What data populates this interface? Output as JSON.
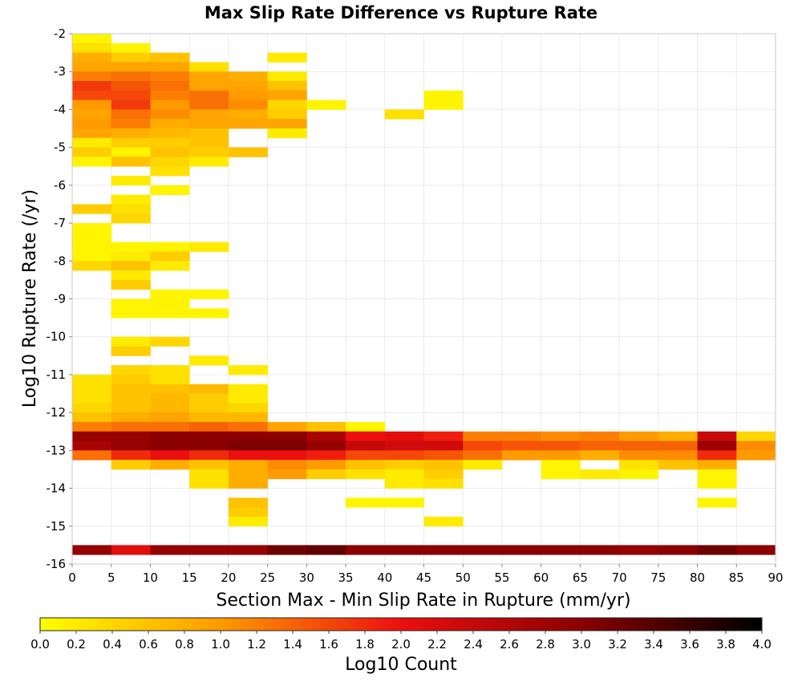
{
  "chart_data": {
    "type": "heatmap",
    "title": "Max Slip Rate Difference vs Rupture Rate",
    "xlabel": "Section Max - Min Slip Rate in Rupture (mm/yr)",
    "ylabel": "Log10 Rupture Rate (/yr)",
    "xlim": [
      0,
      90
    ],
    "ylim": [
      -16,
      -2
    ],
    "x_bin_width": 5,
    "y_bin_height": 0.25,
    "xticks": [
      0,
      5,
      10,
      15,
      20,
      25,
      30,
      35,
      40,
      45,
      50,
      55,
      60,
      65,
      70,
      75,
      80,
      85,
      90
    ],
    "yticks": [
      -2,
      -3,
      -4,
      -5,
      -6,
      -7,
      -8,
      -9,
      -10,
      -11,
      -12,
      -13,
      -14,
      -15,
      -16
    ],
    "grid": true,
    "colorbar": {
      "label": "Log10 Count",
      "min": 0.0,
      "max": 4.0,
      "ticks": [
        "0.0",
        "0.2",
        "0.4",
        "0.6",
        "0.8",
        "1.0",
        "1.2",
        "1.4",
        "1.6",
        "1.8",
        "2.0",
        "2.2",
        "2.4",
        "2.6",
        "2.8",
        "3.0",
        "3.2",
        "3.4",
        "3.6",
        "3.8",
        "4.0"
      ],
      "colormap": [
        [
          0.0,
          "#ffff00"
        ],
        [
          1.0,
          "#ff9a00"
        ],
        [
          2.0,
          "#ec0f0f"
        ],
        [
          3.0,
          "#8b0000"
        ],
        [
          4.0,
          "#000000"
        ]
      ]
    },
    "bins": [
      {
        "x": 0,
        "y": -2.25,
        "v": 0.1
      },
      {
        "x": 0,
        "y": -2.5,
        "v": 0.3
      },
      {
        "x": 0,
        "y": -2.75,
        "v": 0.8
      },
      {
        "x": 0,
        "y": -3.0,
        "v": 0.9
      },
      {
        "x": 0,
        "y": -3.25,
        "v": 1.2
      },
      {
        "x": 0,
        "y": -3.5,
        "v": 1.7
      },
      {
        "x": 0,
        "y": -3.75,
        "v": 1.6
      },
      {
        "x": 0,
        "y": -4.0,
        "v": 1.0
      },
      {
        "x": 0,
        "y": -4.25,
        "v": 0.9
      },
      {
        "x": 0,
        "y": -4.5,
        "v": 1.0
      },
      {
        "x": 0,
        "y": -4.75,
        "v": 0.9
      },
      {
        "x": 0,
        "y": -5.0,
        "v": 0.2
      },
      {
        "x": 0,
        "y": -5.25,
        "v": 0.5
      },
      {
        "x": 0,
        "y": -5.5,
        "v": 0.1
      },
      {
        "x": 5,
        "y": -2.5,
        "v": 0.1
      },
      {
        "x": 5,
        "y": -2.75,
        "v": 0.5
      },
      {
        "x": 5,
        "y": -3.0,
        "v": 0.9
      },
      {
        "x": 5,
        "y": -3.25,
        "v": 1.3
      },
      {
        "x": 5,
        "y": -3.5,
        "v": 1.5
      },
      {
        "x": 5,
        "y": -3.75,
        "v": 1.6
      },
      {
        "x": 5,
        "y": -4.0,
        "v": 1.7
      },
      {
        "x": 5,
        "y": -4.25,
        "v": 1.3
      },
      {
        "x": 5,
        "y": -4.5,
        "v": 1.2
      },
      {
        "x": 5,
        "y": -4.75,
        "v": 0.8
      },
      {
        "x": 5,
        "y": -5.0,
        "v": 0.5
      },
      {
        "x": 5,
        "y": -5.25,
        "v": 0.1
      },
      {
        "x": 5,
        "y": -5.5,
        "v": 0.6
      },
      {
        "x": 10,
        "y": -2.75,
        "v": 0.6
      },
      {
        "x": 10,
        "y": -3.0,
        "v": 0.9
      },
      {
        "x": 10,
        "y": -3.25,
        "v": 1.2
      },
      {
        "x": 10,
        "y": -3.5,
        "v": 1.3
      },
      {
        "x": 10,
        "y": -3.75,
        "v": 1.2
      },
      {
        "x": 10,
        "y": -4.0,
        "v": 1.0
      },
      {
        "x": 10,
        "y": -4.25,
        "v": 1.1
      },
      {
        "x": 10,
        "y": -4.5,
        "v": 0.8
      },
      {
        "x": 10,
        "y": -4.75,
        "v": 0.7
      },
      {
        "x": 10,
        "y": -5.0,
        "v": 0.5
      },
      {
        "x": 10,
        "y": -5.25,
        "v": 0.6
      },
      {
        "x": 10,
        "y": -5.5,
        "v": 0.4
      },
      {
        "x": 10,
        "y": -5.75,
        "v": 0.3
      },
      {
        "x": 15,
        "y": -3.0,
        "v": 0.3
      },
      {
        "x": 15,
        "y": -3.25,
        "v": 0.9
      },
      {
        "x": 15,
        "y": -3.5,
        "v": 0.9
      },
      {
        "x": 15,
        "y": -3.75,
        "v": 1.3
      },
      {
        "x": 15,
        "y": -4.0,
        "v": 1.3
      },
      {
        "x": 15,
        "y": -4.25,
        "v": 0.9
      },
      {
        "x": 15,
        "y": -4.5,
        "v": 0.9
      },
      {
        "x": 15,
        "y": -4.75,
        "v": 0.6
      },
      {
        "x": 15,
        "y": -5.0,
        "v": 0.6
      },
      {
        "x": 15,
        "y": -5.25,
        "v": 0.5
      },
      {
        "x": 15,
        "y": -5.5,
        "v": 0.2
      },
      {
        "x": 20,
        "y": -3.25,
        "v": 0.8
      },
      {
        "x": 20,
        "y": -3.5,
        "v": 0.9
      },
      {
        "x": 20,
        "y": -3.75,
        "v": 1.0
      },
      {
        "x": 20,
        "y": -4.0,
        "v": 1.1
      },
      {
        "x": 20,
        "y": -4.25,
        "v": 0.8
      },
      {
        "x": 20,
        "y": -4.5,
        "v": 0.9
      },
      {
        "x": 20,
        "y": -5.25,
        "v": 0.6
      },
      {
        "x": 25,
        "y": -2.75,
        "v": 0.2
      },
      {
        "x": 25,
        "y": -3.25,
        "v": 0.2
      },
      {
        "x": 25,
        "y": -3.5,
        "v": 0.6
      },
      {
        "x": 25,
        "y": -3.75,
        "v": 0.9
      },
      {
        "x": 25,
        "y": -4.0,
        "v": 0.4
      },
      {
        "x": 25,
        "y": -4.25,
        "v": 0.5
      },
      {
        "x": 25,
        "y": -4.5,
        "v": 0.9
      },
      {
        "x": 25,
        "y": -4.75,
        "v": 0.2
      },
      {
        "x": 30,
        "y": -4.0,
        "v": 0.1
      },
      {
        "x": 40,
        "y": -4.25,
        "v": 0.3
      },
      {
        "x": 45,
        "y": -3.75,
        "v": 0.1
      },
      {
        "x": 45,
        "y": -4.0,
        "v": 0.1
      },
      {
        "x": 5,
        "y": -6.0,
        "v": 0.2
      },
      {
        "x": 10,
        "y": -6.25,
        "v": 0.1
      },
      {
        "x": 5,
        "y": -6.5,
        "v": 0.2
      },
      {
        "x": 0,
        "y": -6.75,
        "v": 0.5
      },
      {
        "x": 5,
        "y": -6.75,
        "v": 0.3
      },
      {
        "x": 5,
        "y": -7.0,
        "v": 0.4
      },
      {
        "x": 0,
        "y": -7.25,
        "v": 0.1
      },
      {
        "x": 0,
        "y": -7.5,
        "v": 0.1
      },
      {
        "x": 0,
        "y": -7.75,
        "v": 0.1
      },
      {
        "x": 5,
        "y": -7.75,
        "v": 0.1
      },
      {
        "x": 10,
        "y": -7.75,
        "v": 0.1
      },
      {
        "x": 15,
        "y": -7.75,
        "v": 0.2
      },
      {
        "x": 0,
        "y": -8.0,
        "v": 0.1
      },
      {
        "x": 5,
        "y": -8.0,
        "v": 0.2
      },
      {
        "x": 10,
        "y": -8.0,
        "v": 0.5
      },
      {
        "x": 0,
        "y": -8.25,
        "v": 0.4
      },
      {
        "x": 5,
        "y": -8.25,
        "v": 0.6
      },
      {
        "x": 10,
        "y": -8.25,
        "v": 0.2
      },
      {
        "x": 5,
        "y": -8.5,
        "v": 0.2
      },
      {
        "x": 5,
        "y": -8.75,
        "v": 0.5
      },
      {
        "x": 10,
        "y": -9.0,
        "v": 0.1
      },
      {
        "x": 15,
        "y": -9.0,
        "v": 0.1
      },
      {
        "x": 5,
        "y": -9.25,
        "v": 0.1
      },
      {
        "x": 10,
        "y": -9.25,
        "v": 0.1
      },
      {
        "x": 5,
        "y": -9.5,
        "v": 0.1
      },
      {
        "x": 10,
        "y": -9.5,
        "v": 0.1
      },
      {
        "x": 15,
        "y": -9.5,
        "v": 0.1
      },
      {
        "x": 5,
        "y": -10.25,
        "v": 0.2
      },
      {
        "x": 10,
        "y": -10.25,
        "v": 0.4
      },
      {
        "x": 5,
        "y": -10.5,
        "v": 0.5
      },
      {
        "x": 15,
        "y": -10.75,
        "v": 0.2
      },
      {
        "x": 5,
        "y": -11.0,
        "v": 0.4
      },
      {
        "x": 10,
        "y": -11.0,
        "v": 0.3
      },
      {
        "x": 20,
        "y": -11.0,
        "v": 0.2
      },
      {
        "x": 0,
        "y": -11.25,
        "v": 0.3
      },
      {
        "x": 5,
        "y": -11.25,
        "v": 0.5
      },
      {
        "x": 10,
        "y": -11.25,
        "v": 0.3
      },
      {
        "x": 0,
        "y": -11.5,
        "v": 0.3
      },
      {
        "x": 5,
        "y": -11.5,
        "v": 0.6
      },
      {
        "x": 10,
        "y": -11.5,
        "v": 0.6
      },
      {
        "x": 15,
        "y": -11.5,
        "v": 0.7
      },
      {
        "x": 20,
        "y": -11.5,
        "v": 0.2
      },
      {
        "x": 0,
        "y": -11.75,
        "v": 0.3
      },
      {
        "x": 5,
        "y": -11.75,
        "v": 0.6
      },
      {
        "x": 10,
        "y": -11.75,
        "v": 0.7
      },
      {
        "x": 15,
        "y": -11.75,
        "v": 0.5
      },
      {
        "x": 20,
        "y": -11.75,
        "v": 0.2
      },
      {
        "x": 0,
        "y": -12.0,
        "v": 0.4
      },
      {
        "x": 5,
        "y": -12.0,
        "v": 0.6
      },
      {
        "x": 10,
        "y": -12.0,
        "v": 0.7
      },
      {
        "x": 15,
        "y": -12.0,
        "v": 0.5
      },
      {
        "x": 20,
        "y": -12.0,
        "v": 0.4
      },
      {
        "x": 0,
        "y": -12.25,
        "v": 0.6
      },
      {
        "x": 5,
        "y": -12.25,
        "v": 0.8
      },
      {
        "x": 10,
        "y": -12.25,
        "v": 0.9
      },
      {
        "x": 15,
        "y": -12.25,
        "v": 0.7
      },
      {
        "x": 20,
        "y": -12.25,
        "v": 0.7
      },
      {
        "x": 0,
        "y": -12.5,
        "v": 1.2
      },
      {
        "x": 5,
        "y": -12.5,
        "v": 1.3
      },
      {
        "x": 10,
        "y": -12.5,
        "v": 1.3
      },
      {
        "x": 15,
        "y": -12.5,
        "v": 1.4
      },
      {
        "x": 20,
        "y": -12.5,
        "v": 1.3
      },
      {
        "x": 25,
        "y": -12.5,
        "v": 0.9
      },
      {
        "x": 30,
        "y": -12.5,
        "v": 0.6
      },
      {
        "x": 35,
        "y": -12.5,
        "v": 0.1
      },
      {
        "x": 0,
        "y": -12.75,
        "v": 2.9
      },
      {
        "x": 5,
        "y": -12.75,
        "v": 2.9
      },
      {
        "x": 10,
        "y": -12.75,
        "v": 3.0
      },
      {
        "x": 15,
        "y": -12.75,
        "v": 3.0
      },
      {
        "x": 20,
        "y": -12.75,
        "v": 3.0
      },
      {
        "x": 25,
        "y": -12.75,
        "v": 3.0
      },
      {
        "x": 30,
        "y": -12.75,
        "v": 2.7
      },
      {
        "x": 35,
        "y": -12.75,
        "v": 2.0
      },
      {
        "x": 40,
        "y": -12.75,
        "v": 2.1
      },
      {
        "x": 45,
        "y": -12.75,
        "v": 1.9
      },
      {
        "x": 50,
        "y": -12.75,
        "v": 1.2
      },
      {
        "x": 55,
        "y": -12.75,
        "v": 1.2
      },
      {
        "x": 60,
        "y": -12.75,
        "v": 1.1
      },
      {
        "x": 65,
        "y": -12.75,
        "v": 1.2
      },
      {
        "x": 70,
        "y": -12.75,
        "v": 1.0
      },
      {
        "x": 75,
        "y": -12.75,
        "v": 0.8
      },
      {
        "x": 80,
        "y": -12.75,
        "v": 2.4
      },
      {
        "x": 85,
        "y": -12.75,
        "v": 0.4
      },
      {
        "x": 0,
        "y": -13.0,
        "v": 2.7
      },
      {
        "x": 5,
        "y": -13.0,
        "v": 2.9
      },
      {
        "x": 10,
        "y": -13.0,
        "v": 3.0
      },
      {
        "x": 15,
        "y": -13.0,
        "v": 3.0
      },
      {
        "x": 20,
        "y": -13.0,
        "v": 3.1
      },
      {
        "x": 25,
        "y": -13.0,
        "v": 3.1
      },
      {
        "x": 30,
        "y": -13.0,
        "v": 2.9
      },
      {
        "x": 35,
        "y": -13.0,
        "v": 2.4
      },
      {
        "x": 40,
        "y": -13.0,
        "v": 2.3
      },
      {
        "x": 45,
        "y": -13.0,
        "v": 2.3
      },
      {
        "x": 50,
        "y": -13.0,
        "v": 1.6
      },
      {
        "x": 55,
        "y": -13.0,
        "v": 1.5
      },
      {
        "x": 60,
        "y": -13.0,
        "v": 1.5
      },
      {
        "x": 65,
        "y": -13.0,
        "v": 1.4
      },
      {
        "x": 70,
        "y": -13.0,
        "v": 1.4
      },
      {
        "x": 75,
        "y": -13.0,
        "v": 1.4
      },
      {
        "x": 80,
        "y": -13.0,
        "v": 2.8
      },
      {
        "x": 85,
        "y": -13.0,
        "v": 1.1
      },
      {
        "x": 0,
        "y": -13.25,
        "v": 1.3
      },
      {
        "x": 5,
        "y": -13.25,
        "v": 1.8
      },
      {
        "x": 10,
        "y": -13.25,
        "v": 2.0
      },
      {
        "x": 15,
        "y": -13.25,
        "v": 1.8
      },
      {
        "x": 20,
        "y": -13.25,
        "v": 2.0
      },
      {
        "x": 25,
        "y": -13.25,
        "v": 2.0
      },
      {
        "x": 30,
        "y": -13.25,
        "v": 1.9
      },
      {
        "x": 35,
        "y": -13.25,
        "v": 1.6
      },
      {
        "x": 40,
        "y": -13.25,
        "v": 1.6
      },
      {
        "x": 45,
        "y": -13.25,
        "v": 1.5
      },
      {
        "x": 50,
        "y": -13.25,
        "v": 1.3
      },
      {
        "x": 55,
        "y": -13.25,
        "v": 1.0
      },
      {
        "x": 60,
        "y": -13.25,
        "v": 1.0
      },
      {
        "x": 65,
        "y": -13.25,
        "v": 0.8
      },
      {
        "x": 70,
        "y": -13.25,
        "v": 1.1
      },
      {
        "x": 75,
        "y": -13.25,
        "v": 1.1
      },
      {
        "x": 80,
        "y": -13.25,
        "v": 1.8
      },
      {
        "x": 85,
        "y": -13.25,
        "v": 1.0
      },
      {
        "x": 5,
        "y": -13.5,
        "v": 0.5
      },
      {
        "x": 10,
        "y": -13.5,
        "v": 0.8
      },
      {
        "x": 15,
        "y": -13.5,
        "v": 0.6
      },
      {
        "x": 20,
        "y": -13.5,
        "v": 0.8
      },
      {
        "x": 25,
        "y": -13.5,
        "v": 1.1
      },
      {
        "x": 30,
        "y": -13.5,
        "v": 1.0
      },
      {
        "x": 35,
        "y": -13.5,
        "v": 0.6
      },
      {
        "x": 40,
        "y": -13.5,
        "v": 0.5
      },
      {
        "x": 45,
        "y": -13.5,
        "v": 0.6
      },
      {
        "x": 50,
        "y": -13.5,
        "v": 0.2
      },
      {
        "x": 60,
        "y": -13.5,
        "v": 0.1
      },
      {
        "x": 70,
        "y": -13.5,
        "v": 0.3
      },
      {
        "x": 75,
        "y": -13.5,
        "v": 0.6
      },
      {
        "x": 80,
        "y": -13.5,
        "v": 0.8
      },
      {
        "x": 15,
        "y": -13.75,
        "v": 0.3
      },
      {
        "x": 20,
        "y": -13.75,
        "v": 0.8
      },
      {
        "x": 25,
        "y": -13.75,
        "v": 1.0
      },
      {
        "x": 30,
        "y": -13.75,
        "v": 0.5
      },
      {
        "x": 35,
        "y": -13.75,
        "v": 0.3
      },
      {
        "x": 40,
        "y": -13.75,
        "v": 0.2
      },
      {
        "x": 45,
        "y": -13.75,
        "v": 0.5
      },
      {
        "x": 60,
        "y": -13.75,
        "v": 0.1
      },
      {
        "x": 65,
        "y": -13.75,
        "v": 0.2
      },
      {
        "x": 70,
        "y": -13.75,
        "v": 0.1
      },
      {
        "x": 80,
        "y": -13.75,
        "v": 0.1
      },
      {
        "x": 15,
        "y": -14.0,
        "v": 0.3
      },
      {
        "x": 20,
        "y": -14.0,
        "v": 0.8
      },
      {
        "x": 40,
        "y": -14.0,
        "v": 0.2
      },
      {
        "x": 45,
        "y": -14.0,
        "v": 0.3
      },
      {
        "x": 80,
        "y": -14.0,
        "v": 0.1
      },
      {
        "x": 20,
        "y": -14.5,
        "v": 0.6
      },
      {
        "x": 35,
        "y": -14.5,
        "v": 0.1
      },
      {
        "x": 40,
        "y": -14.5,
        "v": 0.1
      },
      {
        "x": 80,
        "y": -14.5,
        "v": 0.1
      },
      {
        "x": 20,
        "y": -14.75,
        "v": 0.5
      },
      {
        "x": 20,
        "y": -15.0,
        "v": 0.2
      },
      {
        "x": 45,
        "y": -15.0,
        "v": 0.2
      },
      {
        "x": 0,
        "y": -15.75,
        "v": 2.9
      },
      {
        "x": 5,
        "y": -15.75,
        "v": 2.1
      },
      {
        "x": 10,
        "y": -15.75,
        "v": 2.9
      },
      {
        "x": 15,
        "y": -15.75,
        "v": 2.9
      },
      {
        "x": 20,
        "y": -15.75,
        "v": 2.9
      },
      {
        "x": 25,
        "y": -15.75,
        "v": 3.2
      },
      {
        "x": 30,
        "y": -15.75,
        "v": 3.3
      },
      {
        "x": 35,
        "y": -15.75,
        "v": 3.0
      },
      {
        "x": 40,
        "y": -15.75,
        "v": 3.0
      },
      {
        "x": 45,
        "y": -15.75,
        "v": 3.0
      },
      {
        "x": 50,
        "y": -15.75,
        "v": 3.0
      },
      {
        "x": 55,
        "y": -15.75,
        "v": 3.0
      },
      {
        "x": 60,
        "y": -15.75,
        "v": 3.0
      },
      {
        "x": 65,
        "y": -15.75,
        "v": 3.0
      },
      {
        "x": 70,
        "y": -15.75,
        "v": 2.9
      },
      {
        "x": 75,
        "y": -15.75,
        "v": 3.0
      },
      {
        "x": 80,
        "y": -15.75,
        "v": 3.2
      },
      {
        "x": 85,
        "y": -15.75,
        "v": 3.0
      }
    ]
  }
}
